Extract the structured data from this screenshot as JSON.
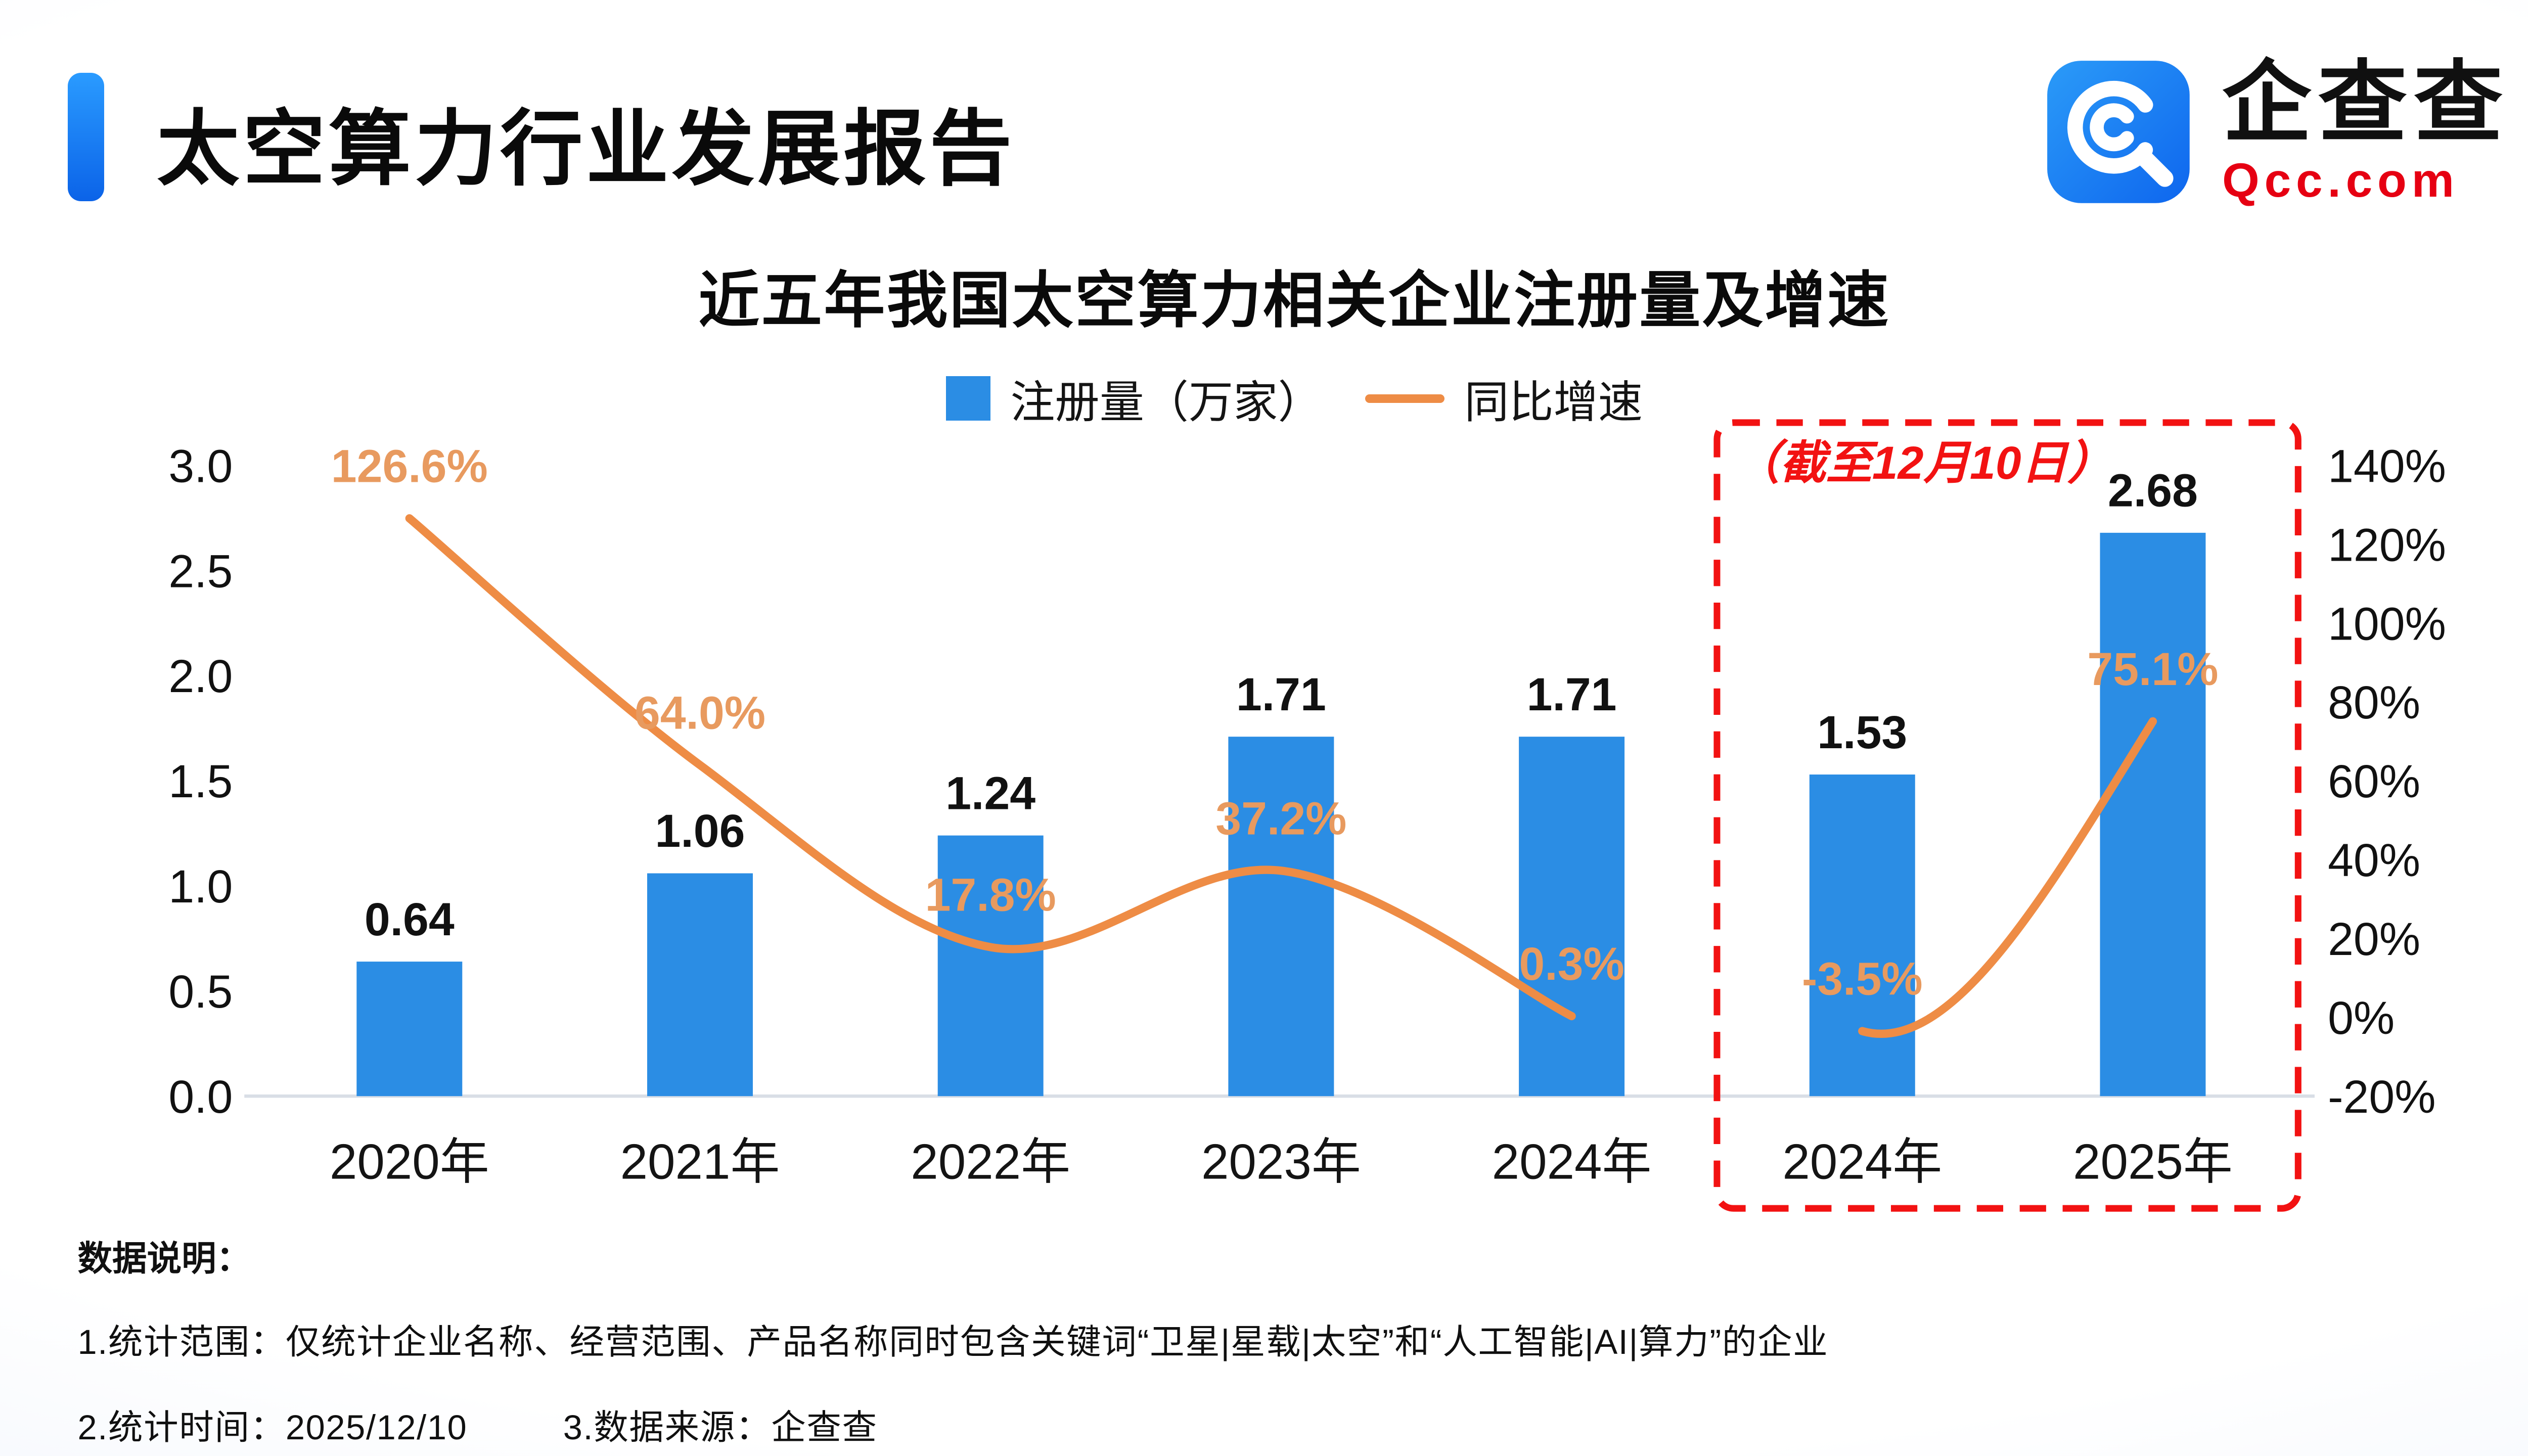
{
  "header": {
    "title": "太空算力行业发展报告",
    "logo": {
      "name": "企查查",
      "domain": "Qcc.com"
    }
  },
  "chart_data": {
    "type": "combo-bar-line",
    "title": "近五年我国太空算力相关企业注册量及增速",
    "legend": [
      {
        "label": "注册量（万家）",
        "type": "bar",
        "color": "#2b8de4"
      },
      {
        "label": "同比增速",
        "type": "line",
        "color": "#ee8c45"
      }
    ],
    "categories": [
      "2020年",
      "2021年",
      "2022年",
      "2023年",
      "2024年",
      "2024年",
      "2025年"
    ],
    "bar_series": {
      "name": "注册量（万家）",
      "values": [
        0.64,
        1.06,
        1.24,
        1.71,
        1.71,
        1.53,
        2.68
      ],
      "labels": [
        "0.64",
        "1.06",
        "1.24",
        "1.71",
        "1.71",
        "1.53",
        "2.68"
      ]
    },
    "line_series": {
      "name": "同比增速",
      "values_pct": [
        126.6,
        64.0,
        17.8,
        37.2,
        0.3,
        -3.5,
        75.1
      ],
      "labels": [
        "126.6%",
        "64.0%",
        "17.8%",
        "37.2%",
        "0.3%",
        "-3.5%",
        "75.1%"
      ],
      "segments": [
        [
          0,
          1,
          2,
          3,
          4
        ],
        [
          5,
          6
        ]
      ],
      "label_color": "#e89a5f"
    },
    "left_axis": {
      "min": 0,
      "max": 3.0,
      "ticks": [
        "3.0",
        "2.5",
        "2.0",
        "1.5",
        "1.0",
        "0.5",
        "0.0"
      ]
    },
    "right_axis": {
      "min": -20,
      "max": 140,
      "ticks": [
        "140%",
        "120%",
        "100%",
        "80%",
        "60%",
        "40%",
        "20%",
        "0%",
        "-20%"
      ]
    },
    "annotation": {
      "label": "（截至12月10日）",
      "box_start_index": 5,
      "box_end_index": 6,
      "color": "#f21212"
    }
  },
  "footer": {
    "heading": "数据说明：",
    "line1": "1.统计范围：仅统计企业名称、经营范围、产品名称同时包含关键词“卫星|星载|太空”和“人工智能|AI|算力”的企业",
    "line2": "2.统计时间：2025/12/10",
    "line3": "3.数据来源：企查查"
  }
}
